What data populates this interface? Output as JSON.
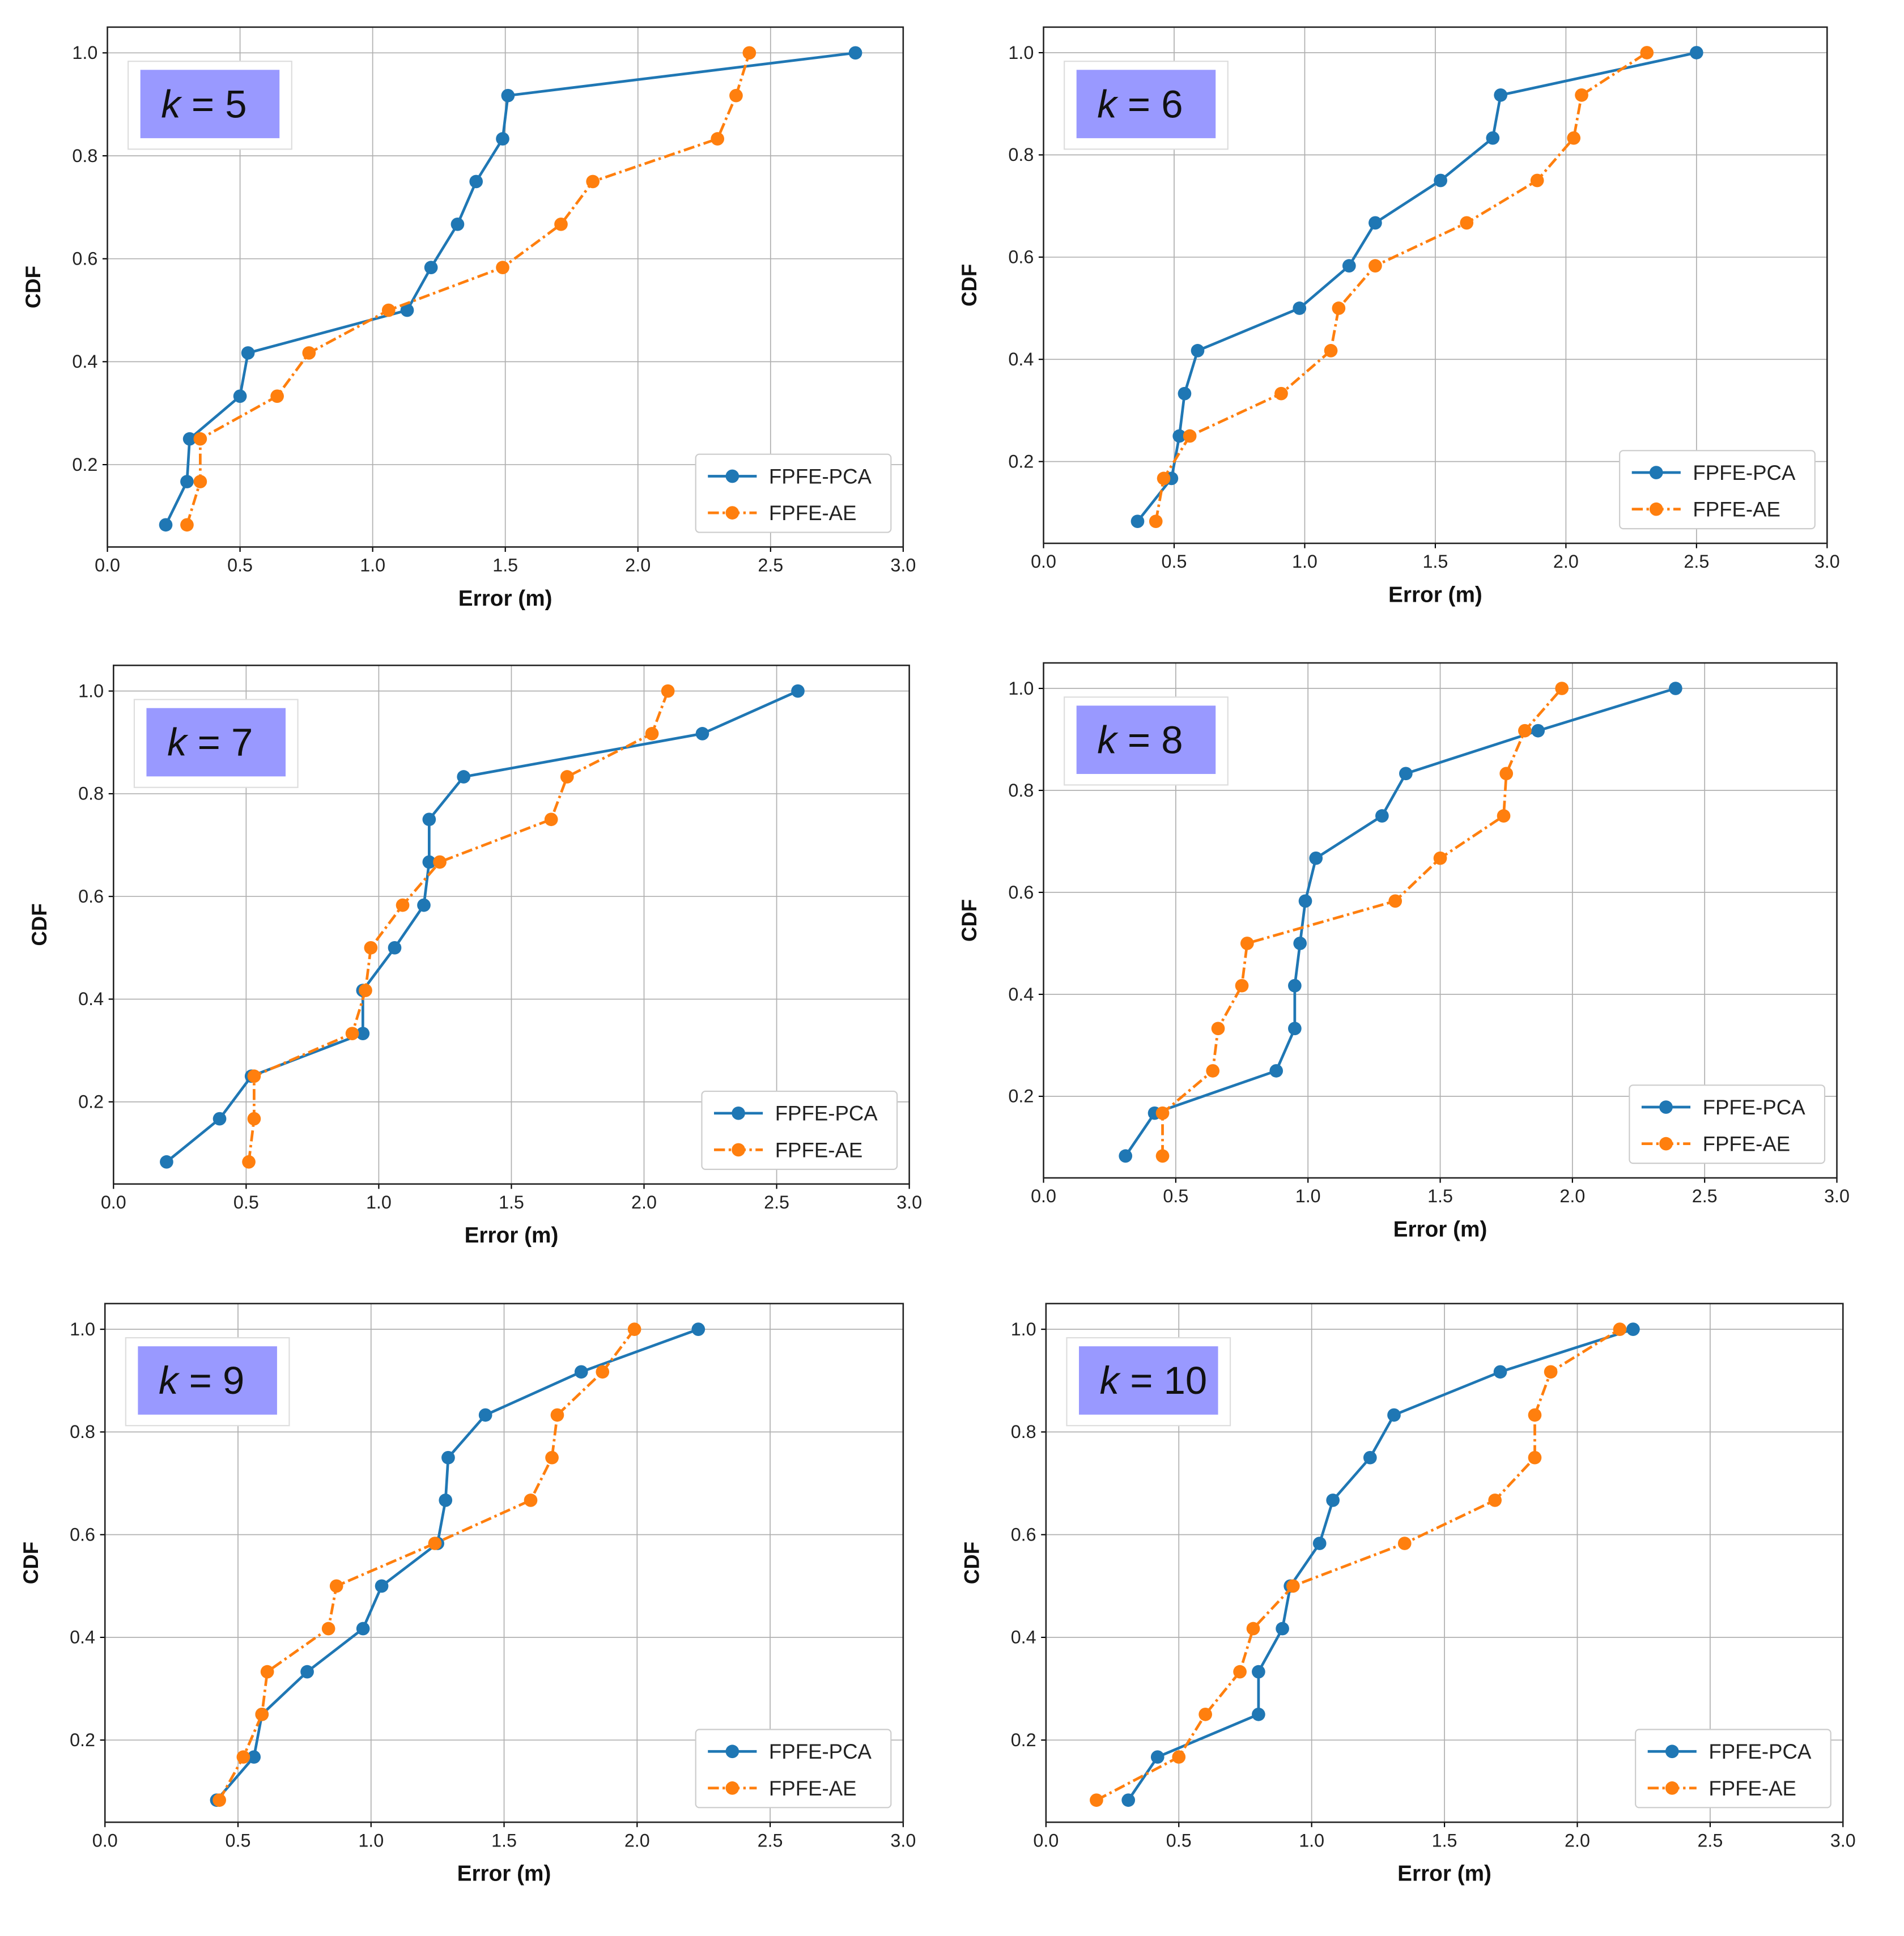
{
  "chart_data": [
    {
      "type": "line",
      "title": "k = 5",
      "k_label": "k",
      "k_value": "= 5",
      "xlabel": "Error (m)",
      "ylabel": "CDF",
      "xlim": [
        0,
        3
      ],
      "ylim": [
        0.04,
        1.05
      ],
      "xticks": [
        "0.0",
        "0.5",
        "1.0",
        "1.5",
        "2.0",
        "2.5",
        "3.0"
      ],
      "yticks": [
        "0.2",
        "0.4",
        "0.6",
        "0.8",
        "1.0"
      ],
      "grid": true,
      "legend": "bottom-right",
      "y": [
        0.083,
        0.167,
        0.25,
        0.333,
        0.417,
        0.5,
        0.583,
        0.667,
        0.75,
        0.833,
        0.917,
        1.0
      ],
      "series": [
        {
          "name": "FPFE-PCA",
          "color": "#1f77b4",
          "x": [
            0.22,
            0.3,
            0.31,
            0.5,
            0.53,
            1.13,
            1.22,
            1.32,
            1.39,
            1.49,
            1.51,
            2.82
          ]
        },
        {
          "name": "FPFE-AE",
          "color": "#ff7f0e",
          "x": [
            0.3,
            0.35,
            0.35,
            0.64,
            0.76,
            1.06,
            1.49,
            1.71,
            1.83,
            2.3,
            2.37,
            2.42
          ]
        }
      ]
    },
    {
      "type": "line",
      "title": "k = 6",
      "k_label": "k",
      "k_value": "= 6",
      "xlabel": "Error (m)",
      "ylabel": "CDF",
      "xlim": [
        0,
        3
      ],
      "ylim": [
        0.04,
        1.05
      ],
      "xticks": [
        "0.0",
        "0.5",
        "1.0",
        "1.5",
        "2.0",
        "2.5",
        "3.0"
      ],
      "yticks": [
        "0.2",
        "0.4",
        "0.6",
        "0.8",
        "1.0"
      ],
      "grid": true,
      "legend": "bottom-right",
      "y": [
        0.083,
        0.167,
        0.25,
        0.333,
        0.417,
        0.5,
        0.583,
        0.667,
        0.75,
        0.833,
        0.917,
        1.0
      ],
      "series": [
        {
          "name": "FPFE-PCA",
          "color": "#1f77b4",
          "x": [
            0.36,
            0.49,
            0.52,
            0.54,
            0.59,
            0.98,
            1.17,
            1.27,
            1.52,
            1.72,
            1.75,
            2.5
          ]
        },
        {
          "name": "FPFE-AE",
          "color": "#ff7f0e",
          "x": [
            0.43,
            0.46,
            0.56,
            0.91,
            1.1,
            1.13,
            1.27,
            1.62,
            1.89,
            2.03,
            2.06,
            2.31
          ]
        }
      ]
    },
    {
      "type": "line",
      "title": "k = 7",
      "k_label": "k",
      "k_value": "= 7",
      "xlabel": "Error (m)",
      "ylabel": "CDF",
      "xlim": [
        0,
        3
      ],
      "ylim": [
        0.04,
        1.05
      ],
      "xticks": [
        "0.0",
        "0.5",
        "1.0",
        "1.5",
        "2.0",
        "2.5",
        "3.0"
      ],
      "yticks": [
        "0.2",
        "0.4",
        "0.6",
        "0.8",
        "1.0"
      ],
      "grid": true,
      "legend": "bottom-right",
      "y": [
        0.083,
        0.167,
        0.25,
        0.333,
        0.417,
        0.5,
        0.583,
        0.667,
        0.75,
        0.833,
        0.917,
        1.0
      ],
      "series": [
        {
          "name": "FPFE-PCA",
          "color": "#1f77b4",
          "x": [
            0.2,
            0.4,
            0.52,
            0.94,
            0.94,
            1.06,
            1.17,
            1.19,
            1.19,
            1.32,
            2.22,
            2.58
          ]
        },
        {
          "name": "FPFE-AE",
          "color": "#ff7f0e",
          "x": [
            0.51,
            0.53,
            0.53,
            0.9,
            0.95,
            0.97,
            1.09,
            1.23,
            1.65,
            1.71,
            2.03,
            2.09
          ]
        }
      ]
    },
    {
      "type": "line",
      "title": "k = 8",
      "k_label": "k",
      "k_value": "= 8",
      "xlabel": "Error (m)",
      "ylabel": "CDF",
      "xlim": [
        0,
        3
      ],
      "ylim": [
        0.04,
        1.05
      ],
      "xticks": [
        "0.0",
        "0.5",
        "1.0",
        "1.5",
        "2.0",
        "2.5",
        "3.0"
      ],
      "yticks": [
        "0.2",
        "0.4",
        "0.6",
        "0.8",
        "1.0"
      ],
      "grid": true,
      "legend": "bottom-right",
      "y": [
        0.083,
        0.167,
        0.25,
        0.333,
        0.417,
        0.5,
        0.583,
        0.667,
        0.75,
        0.833,
        0.917,
        1.0
      ],
      "series": [
        {
          "name": "FPFE-PCA",
          "color": "#1f77b4",
          "x": [
            0.31,
            0.42,
            0.88,
            0.95,
            0.95,
            0.97,
            0.99,
            1.03,
            1.28,
            1.37,
            1.87,
            2.39
          ]
        },
        {
          "name": "FPFE-AE",
          "color": "#ff7f0e",
          "x": [
            0.45,
            0.45,
            0.64,
            0.66,
            0.75,
            0.77,
            1.33,
            1.5,
            1.74,
            1.75,
            1.82,
            1.96
          ]
        }
      ]
    },
    {
      "type": "line",
      "title": "k = 9",
      "k_label": "k",
      "k_value": "= 9",
      "xlabel": "Error (m)",
      "ylabel": "CDF",
      "xlim": [
        0,
        3
      ],
      "ylim": [
        0.04,
        1.05
      ],
      "xticks": [
        "0.0",
        "0.5",
        "1.0",
        "1.5",
        "2.0",
        "2.5",
        "3.0"
      ],
      "yticks": [
        "0.2",
        "0.4",
        "0.6",
        "0.8",
        "1.0"
      ],
      "grid": true,
      "legend": "bottom-right",
      "y": [
        0.083,
        0.167,
        0.25,
        0.333,
        0.417,
        0.5,
        0.583,
        0.667,
        0.75,
        0.833,
        0.917,
        1.0
      ],
      "series": [
        {
          "name": "FPFE-PCA",
          "color": "#1f77b4",
          "x": [
            0.42,
            0.56,
            0.59,
            0.76,
            0.97,
            1.04,
            1.25,
            1.28,
            1.29,
            1.43,
            1.79,
            2.23
          ]
        },
        {
          "name": "FPFE-AE",
          "color": "#ff7f0e",
          "x": [
            0.43,
            0.52,
            0.59,
            0.61,
            0.84,
            0.87,
            1.24,
            1.6,
            1.68,
            1.7,
            1.87,
            1.99
          ]
        }
      ]
    },
    {
      "type": "line",
      "title": "k = 10",
      "k_label": "k",
      "k_value": "= 10",
      "xlabel": "Error (m)",
      "ylabel": "CDF",
      "xlim": [
        0,
        3
      ],
      "ylim": [
        0.04,
        1.05
      ],
      "xticks": [
        "0.0",
        "0.5",
        "1.0",
        "1.5",
        "2.0",
        "2.5",
        "3.0"
      ],
      "yticks": [
        "0.2",
        "0.4",
        "0.6",
        "0.8",
        "1.0"
      ],
      "grid": true,
      "legend": "bottom-right",
      "y": [
        0.083,
        0.167,
        0.25,
        0.333,
        0.417,
        0.5,
        0.583,
        0.667,
        0.75,
        0.833,
        0.917,
        1.0
      ],
      "series": [
        {
          "name": "FPFE-PCA",
          "color": "#1f77b4",
          "x": [
            0.31,
            0.42,
            0.8,
            0.8,
            0.89,
            0.92,
            1.03,
            1.08,
            1.22,
            1.31,
            1.71,
            2.21
          ]
        },
        {
          "name": "FPFE-AE",
          "color": "#ff7f0e",
          "x": [
            0.19,
            0.5,
            0.6,
            0.73,
            0.78,
            0.93,
            1.35,
            1.69,
            1.84,
            1.84,
            1.9,
            2.16
          ]
        }
      ]
    }
  ],
  "label_box_color": "#9999ff"
}
